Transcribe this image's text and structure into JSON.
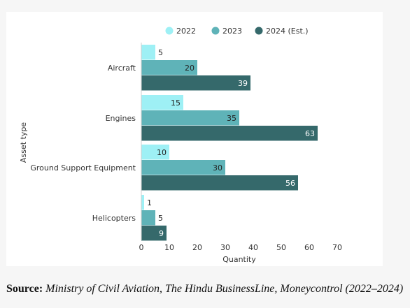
{
  "chart_data": {
    "type": "bar",
    "orientation": "horizontal",
    "categories": [
      "Aircraft",
      "Engines",
      "Ground Support Equipment",
      "Helicopters"
    ],
    "series": [
      {
        "name": "2022",
        "color": "#9ef0f5",
        "values": [
          5,
          15,
          10,
          1
        ]
      },
      {
        "name": "2023",
        "color": "#5fb3b8",
        "values": [
          20,
          35,
          30,
          5
        ]
      },
      {
        "name": "2024 (Est.)",
        "color": "#35696b",
        "values": [
          39,
          63,
          56,
          9
        ]
      }
    ],
    "xlabel": "Quantity",
    "ylabel": "Asset type",
    "xlim": [
      0,
      70
    ],
    "xticks": [
      0,
      10,
      20,
      30,
      40,
      50,
      60,
      70
    ],
    "legend_position": "top",
    "grid": false
  },
  "source": {
    "label": "Source:",
    "text": "Ministry of Civil Aviation, The Hindu BusinessLine, Moneycontrol (2022–2024)"
  }
}
